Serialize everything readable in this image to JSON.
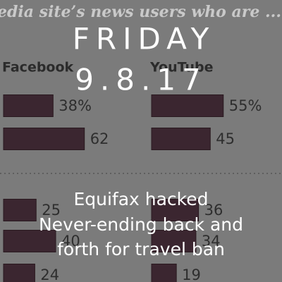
{
  "background": {
    "heading": "edia site’s news users who are ...",
    "columns": [
      {
        "name": "Facebook",
        "upper": [
          {
            "value": 38,
            "label": "38%"
          },
          62
        ],
        "lower": [
          25,
          40,
          24
        ]
      },
      {
        "name": "YouTube",
        "upper": [
          {
            "value": 55,
            "label": "55%"
          },
          45
        ],
        "lower": [
          36,
          34,
          19
        ]
      }
    ]
  },
  "overlay": {
    "day": "FRIDAY",
    "date": "9.8.17",
    "lines": [
      "Equifax hacked",
      "Never-ending back and",
      "forth for travel ban"
    ]
  }
}
